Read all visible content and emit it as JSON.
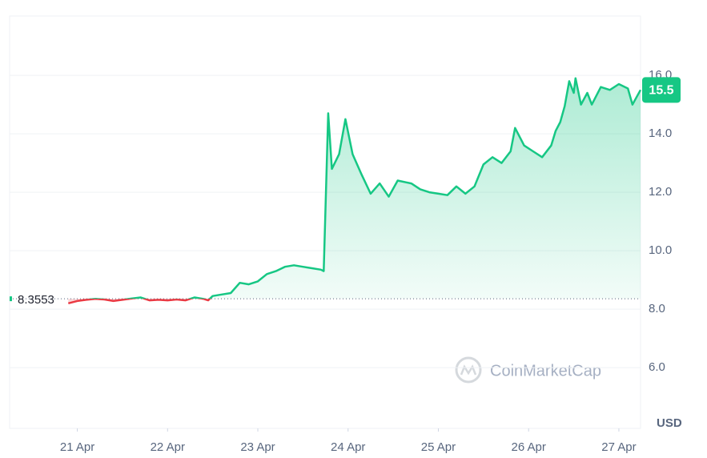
{
  "chart_data": {
    "type": "line",
    "x": [
      20.9,
      21.0,
      21.1,
      21.2,
      21.3,
      21.4,
      21.5,
      21.6,
      21.7,
      21.8,
      21.9,
      22.0,
      22.1,
      22.2,
      22.3,
      22.4,
      22.45,
      22.5,
      22.6,
      22.7,
      22.8,
      22.9,
      23.0,
      23.1,
      23.2,
      23.3,
      23.4,
      23.5,
      23.6,
      23.7,
      23.73,
      23.78,
      23.82,
      23.9,
      23.97,
      24.05,
      24.15,
      24.25,
      24.35,
      24.45,
      24.55,
      24.7,
      24.8,
      24.9,
      25.0,
      25.1,
      25.2,
      25.3,
      25.4,
      25.5,
      25.6,
      25.7,
      25.8,
      25.85,
      25.95,
      26.05,
      26.15,
      26.25,
      26.3,
      26.35,
      26.4,
      26.45,
      26.5,
      26.52,
      26.58,
      26.65,
      26.7,
      26.8,
      26.9,
      27.0,
      27.1,
      27.15,
      27.24
    ],
    "values": [
      8.2,
      8.28,
      8.32,
      8.35,
      8.33,
      8.28,
      8.32,
      8.36,
      8.4,
      8.3,
      8.32,
      8.3,
      8.33,
      8.3,
      8.4,
      8.35,
      8.3,
      8.45,
      8.5,
      8.55,
      8.9,
      8.85,
      8.95,
      9.2,
      9.3,
      9.45,
      9.5,
      9.45,
      9.4,
      9.35,
      9.3,
      14.7,
      12.8,
      13.3,
      14.5,
      13.3,
      12.6,
      11.95,
      12.3,
      11.85,
      12.4,
      12.3,
      12.1,
      12.0,
      11.95,
      11.9,
      12.2,
      11.95,
      12.2,
      12.95,
      13.2,
      13.0,
      13.4,
      14.2,
      13.6,
      13.4,
      13.2,
      13.6,
      14.1,
      14.4,
      14.95,
      15.8,
      15.4,
      15.9,
      15.0,
      15.4,
      15.0,
      15.6,
      15.5,
      15.7,
      15.55,
      15.0,
      15.5
    ],
    "up_color": "#16c784",
    "down_color": "#ea3943",
    "baseline": 8.3553,
    "current_value": 15.5,
    "xlim": [
      20.25,
      27.24
    ],
    "xticks": [
      {
        "value": 21,
        "label": "21 Apr"
      },
      {
        "value": 22,
        "label": "22 Apr"
      },
      {
        "value": 23,
        "label": "23 Apr"
      },
      {
        "value": 24,
        "label": "24 Apr"
      },
      {
        "value": 25,
        "label": "25 Apr"
      },
      {
        "value": 26,
        "label": "26 Apr"
      },
      {
        "value": 27,
        "label": "27 Apr"
      }
    ],
    "ylim": [
      3.92,
      18.03
    ],
    "yticks": [
      {
        "value": 6,
        "label": "6.0"
      },
      {
        "value": 8,
        "label": "8.0"
      },
      {
        "value": 10,
        "label": "10.0"
      },
      {
        "value": 12,
        "label": "12.0"
      },
      {
        "value": 14,
        "label": "14.0"
      },
      {
        "value": 16,
        "label": "16.0"
      }
    ],
    "y_axis_label": "USD",
    "watermark": "CoinMarketCap",
    "grid": true
  }
}
